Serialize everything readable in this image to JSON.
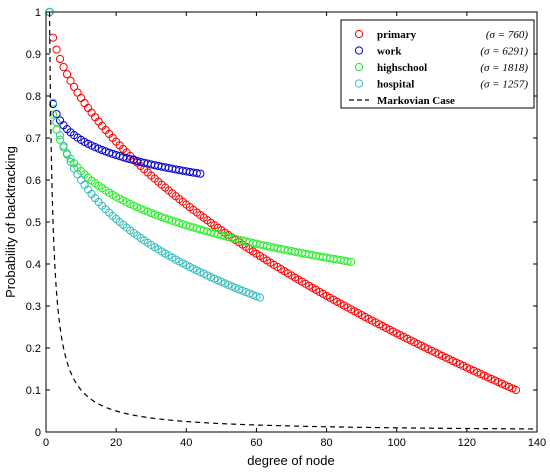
{
  "chart_data": {
    "type": "scatter",
    "xlabel": "degree of node",
    "ylabel": "Probability of backtracking",
    "xlim": [
      0,
      140
    ],
    "ylim": [
      0,
      1
    ],
    "xticks": [
      "0",
      "20",
      "40",
      "60",
      "80",
      "100",
      "120",
      "140"
    ],
    "yticks": [
      "0",
      "0.1",
      "0.2",
      "0.3",
      "0.4",
      "0.5",
      "0.6",
      "0.7",
      "0.8",
      "0.9",
      "1"
    ],
    "legend_position": "top-right",
    "series": [
      {
        "name": "primary",
        "sigma_label": "(σ = 760)",
        "color": "#ff0000",
        "style": "circles",
        "decay": {
          "x_start": 1,
          "x_end": 134,
          "y_start": 1.0,
          "y_end": 0.1,
          "exponent": 0.55
        }
      },
      {
        "name": "work",
        "sigma_label": "(σ = 6291)",
        "color": "#0000cc",
        "style": "circles",
        "decay": {
          "x_start": 1,
          "x_end": 44,
          "y_start": 1.0,
          "y_end": 0.615,
          "exponent": 0.15
        }
      },
      {
        "name": "highschool",
        "sigma_label": "(σ = 1818)",
        "color": "#22ee22",
        "style": "circles",
        "decay": {
          "x_start": 1,
          "x_end": 87,
          "y_start": 1.0,
          "y_end": 0.405,
          "exponent": 0.2
        }
      },
      {
        "name": "hospital",
        "sigma_label": "(σ = 1257)",
        "color": "#33bbbb",
        "style": "circles",
        "decay": {
          "x_start": 1,
          "x_end": 61,
          "y_start": 1.0,
          "y_end": 0.32,
          "exponent": 0.28
        }
      },
      {
        "name": "Markovian Case",
        "sigma_label": "",
        "color": "#000000",
        "style": "dashed",
        "formula": "1/x",
        "x_start": 1,
        "x_end": 140
      }
    ]
  }
}
